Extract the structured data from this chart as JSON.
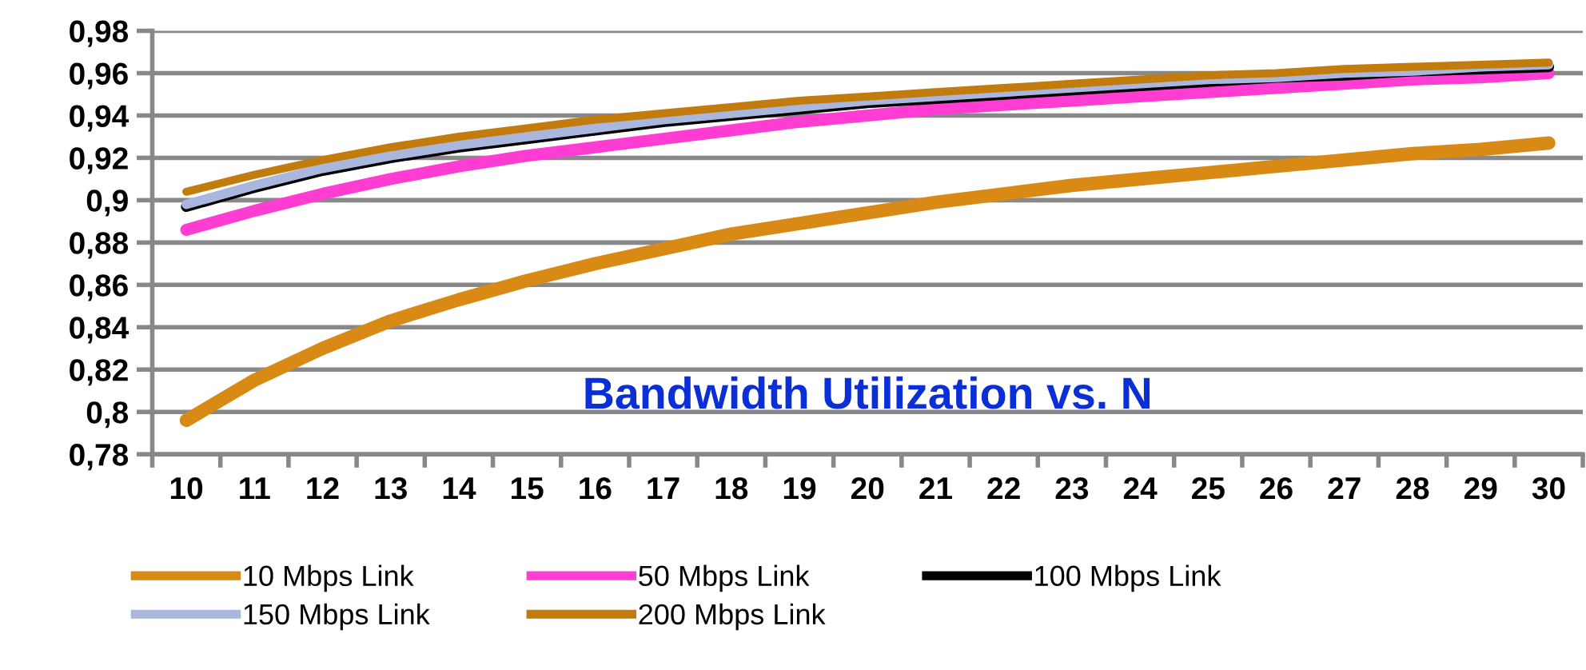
{
  "chart_data": {
    "type": "line",
    "categories": [
      "10",
      "11",
      "12",
      "13",
      "14",
      "15",
      "16",
      "17",
      "18",
      "19",
      "20",
      "21",
      "22",
      "23",
      "24",
      "25",
      "26",
      "27",
      "28",
      "29",
      "30"
    ],
    "series": [
      {
        "name": "10 Mbps Link",
        "color": "#d98a14",
        "values": [
          0.796,
          0.815,
          0.83,
          0.843,
          0.853,
          0.862,
          0.87,
          0.877,
          0.884,
          0.889,
          0.894,
          0.899,
          0.903,
          0.907,
          0.91,
          0.913,
          0.916,
          0.919,
          0.922,
          0.924,
          0.927
        ]
      },
      {
        "name": "50 Mbps Link",
        "color": "#ff3dd2",
        "values": [
          0.886,
          0.895,
          0.903,
          0.91,
          0.916,
          0.921,
          0.925,
          0.929,
          0.933,
          0.937,
          0.94,
          0.943,
          0.945,
          0.947,
          0.949,
          0.951,
          0.953,
          0.955,
          0.957,
          0.958,
          0.96
        ]
      },
      {
        "name": "100 Mbps Link",
        "color": "#000000",
        "values": [
          0.897,
          0.906,
          0.914,
          0.92,
          0.925,
          0.929,
          0.933,
          0.937,
          0.94,
          0.943,
          0.946,
          0.948,
          0.95,
          0.952,
          0.954,
          0.956,
          0.958,
          0.959,
          0.961,
          0.962,
          0.963
        ]
      },
      {
        "name": "150 Mbps Link",
        "color": "#a9b6de",
        "values": [
          0.898,
          0.907,
          0.915,
          0.921,
          0.926,
          0.93,
          0.934,
          0.938,
          0.941,
          0.944,
          0.947,
          0.949,
          0.951,
          0.953,
          0.955,
          0.957,
          0.958,
          0.96,
          0.961,
          0.963,
          0.964
        ]
      },
      {
        "name": "200 Mbps Link",
        "color": "#c27c0e",
        "values": [
          0.904,
          0.912,
          0.919,
          0.925,
          0.93,
          0.934,
          0.938,
          0.941,
          0.944,
          0.947,
          0.949,
          0.951,
          0.953,
          0.955,
          0.957,
          0.959,
          0.96,
          0.962,
          0.963,
          0.964,
          0.965
        ]
      }
    ],
    "ylim": [
      0.78,
      0.98
    ],
    "yticks": [
      {
        "value": 0.78,
        "label": "0,78"
      },
      {
        "value": 0.8,
        "label": "0,8"
      },
      {
        "value": 0.82,
        "label": "0,82"
      },
      {
        "value": 0.84,
        "label": "0,84"
      },
      {
        "value": 0.86,
        "label": "0,86"
      },
      {
        "value": 0.88,
        "label": "0,88"
      },
      {
        "value": 0.9,
        "label": "0,9"
      },
      {
        "value": 0.92,
        "label": "0,92"
      },
      {
        "value": 0.94,
        "label": "0,94"
      },
      {
        "value": 0.96,
        "label": "0,96"
      },
      {
        "value": 0.98,
        "label": "0,98"
      }
    ],
    "annotations": [
      "Bandwidth Utilization vs. N"
    ],
    "grid": "y",
    "legend": "bottom",
    "marker": "none",
    "line_style": "solid"
  }
}
